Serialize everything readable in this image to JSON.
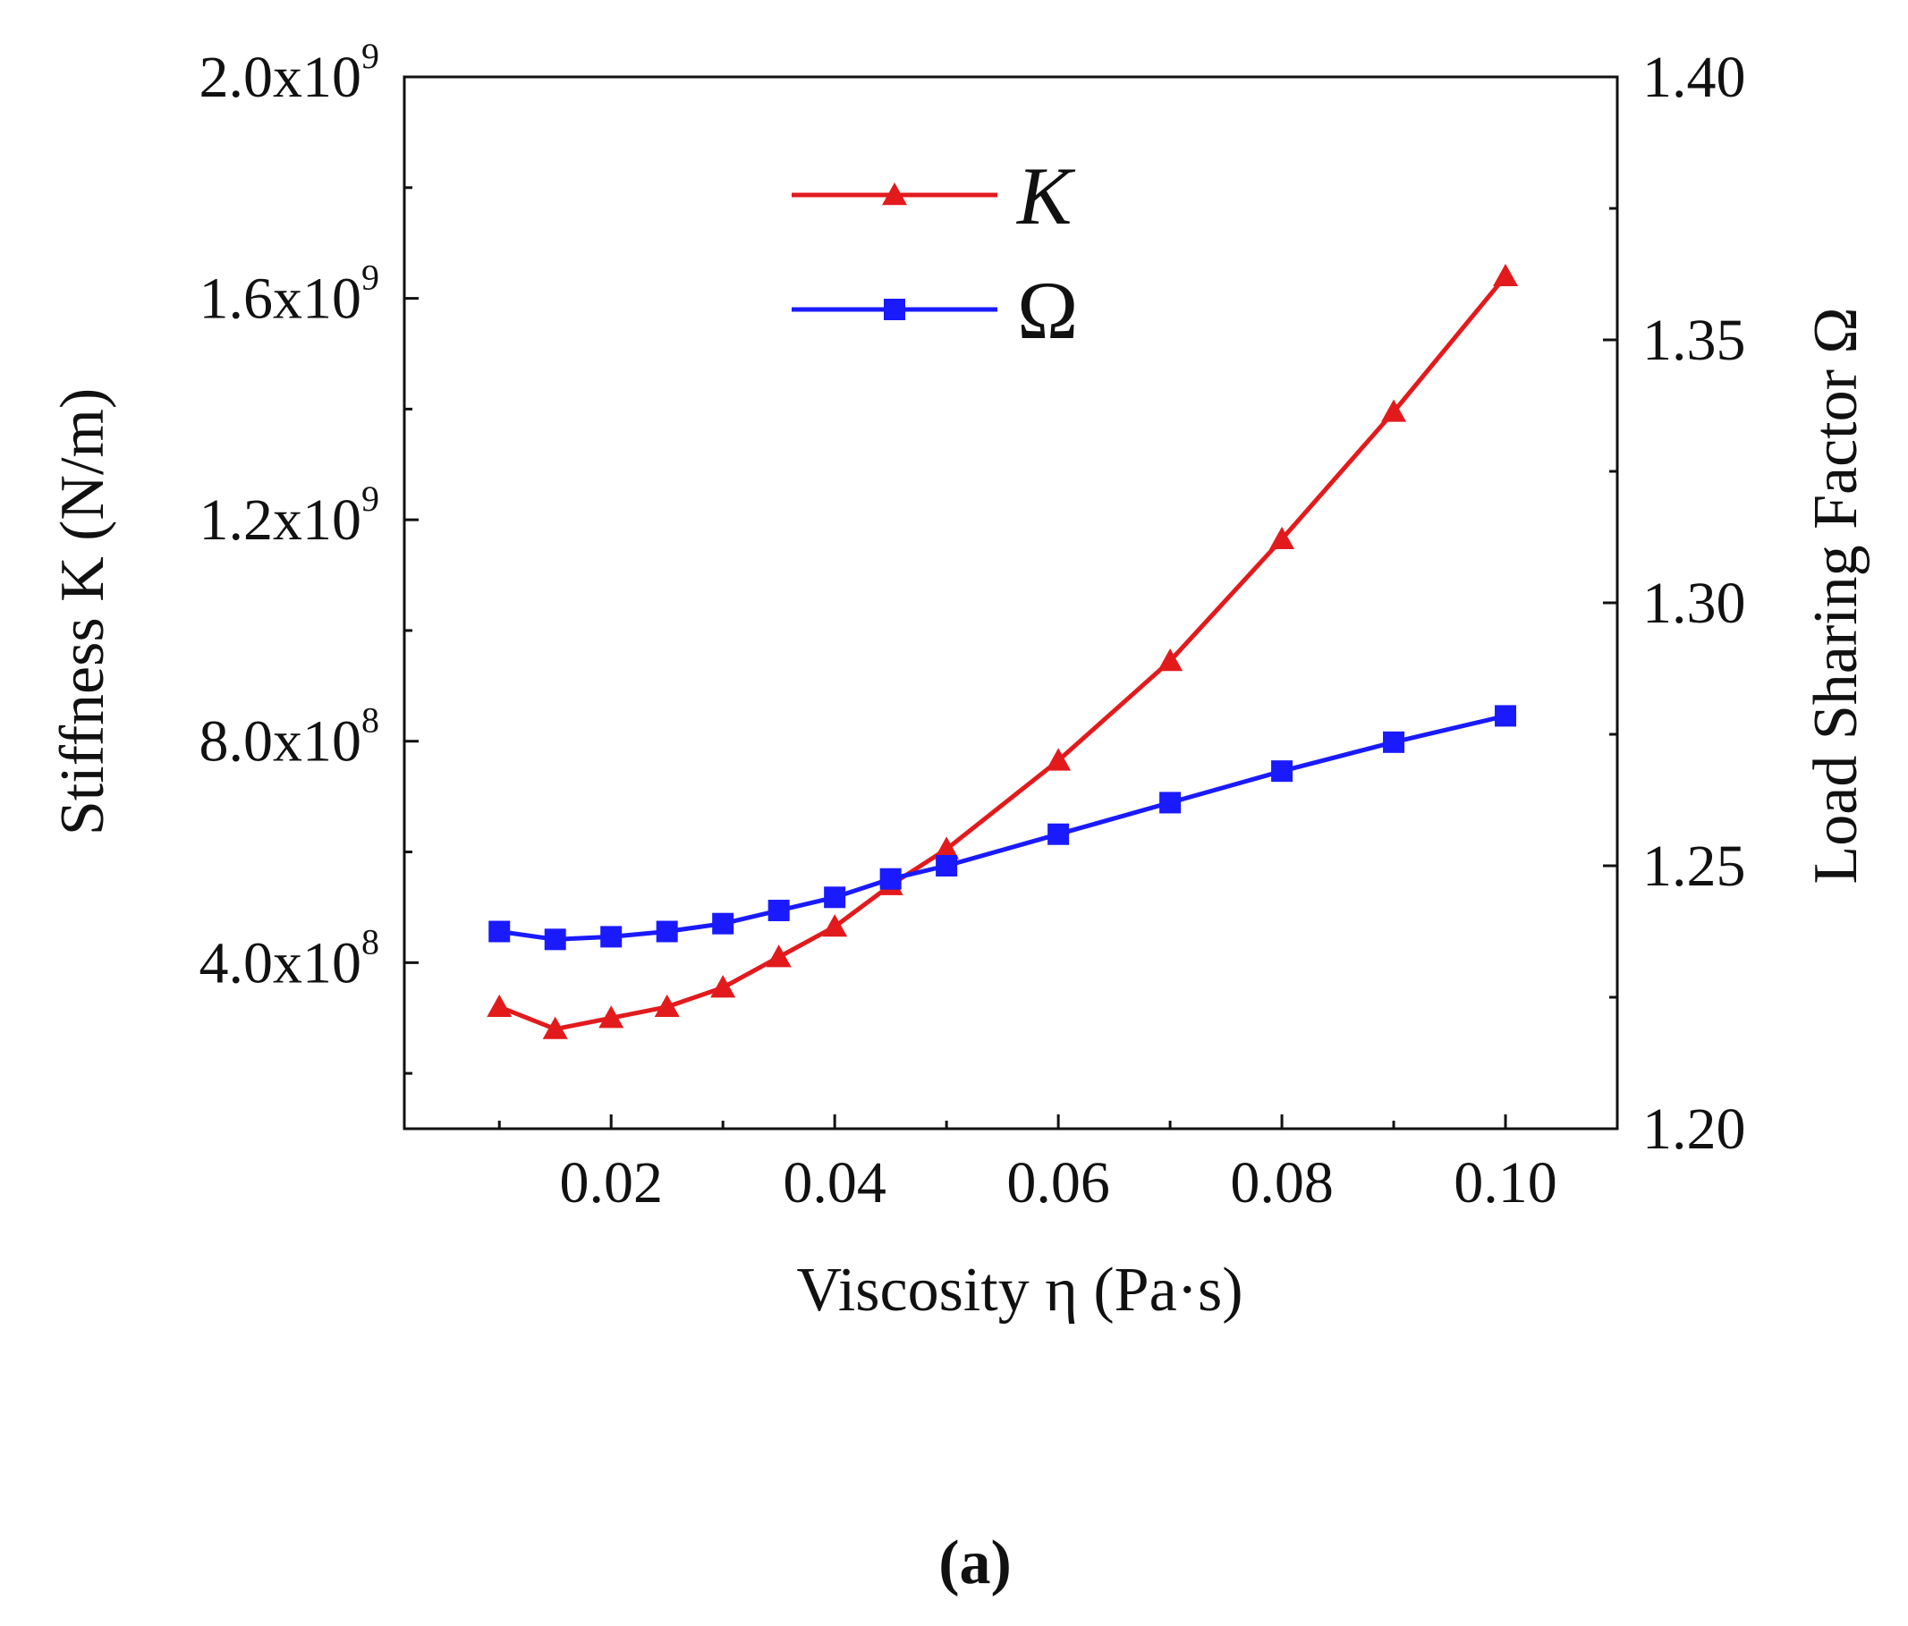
{
  "chart_data": {
    "type": "line",
    "dual_axis": true,
    "x": [
      0.01,
      0.015,
      0.02,
      0.025,
      0.03,
      0.035,
      0.04,
      0.045,
      0.05,
      0.06,
      0.07,
      0.08,
      0.09,
      0.1
    ],
    "xlabel": "Viscosity η (Pa·s)",
    "xlim": [
      0.0015,
      0.11
    ],
    "xticks": [
      {
        "value": 0.02,
        "label": "0.02"
      },
      {
        "value": 0.04,
        "label": "0.04"
      },
      {
        "value": 0.06,
        "label": "0.06"
      },
      {
        "value": 0.08,
        "label": "0.08"
      },
      {
        "value": 0.1,
        "label": "0.10"
      }
    ],
    "y_left": {
      "label": "Stiffness K (N/m)",
      "lim": [
        100000000.0,
        2000000000.0
      ],
      "ticks": [
        {
          "value": 400000000.0,
          "mantissa": "4.0x10",
          "exp": "8"
        },
        {
          "value": 800000000.0,
          "mantissa": "8.0x10",
          "exp": "8"
        },
        {
          "value": 1200000000.0,
          "mantissa": "1.2x10",
          "exp": "9"
        },
        {
          "value": 1600000000.0,
          "mantissa": "1.6x10",
          "exp": "9"
        },
        {
          "value": 2000000000.0,
          "mantissa": "2.0x10",
          "exp": "9"
        }
      ]
    },
    "y_right": {
      "label": "Load Sharing Factor Ω",
      "lim": [
        1.2,
        1.4
      ],
      "ticks": [
        {
          "value": 1.2,
          "label": "1.20"
        },
        {
          "value": 1.25,
          "label": "1.25"
        },
        {
          "value": 1.3,
          "label": "1.30"
        },
        {
          "value": 1.35,
          "label": "1.35"
        },
        {
          "value": 1.4,
          "label": "1.40"
        }
      ]
    },
    "series": [
      {
        "name": "K",
        "axis": "left",
        "color": "#e31a1c",
        "marker": "triangle",
        "values": [
          320000000.0,
          280000000.0,
          300000000.0,
          320000000.0,
          355000000.0,
          410000000.0,
          465000000.0,
          540000000.0,
          605000000.0,
          765000000.0,
          945000000.0,
          1165000000.0,
          1395000000.0,
          1640000000.0
        ]
      },
      {
        "name": "Ω",
        "axis": "right",
        "color": "#1a1aff",
        "marker": "square",
        "values": [
          1.2375,
          1.236,
          1.2365,
          1.2375,
          1.239,
          1.2415,
          1.244,
          1.2475,
          1.25,
          1.256,
          1.262,
          1.268,
          1.2735,
          1.2785
        ]
      }
    ],
    "legend": [
      {
        "label": "K",
        "series": 0
      },
      {
        "label": "Ω",
        "series": 1
      }
    ],
    "legend_position": "top-center",
    "caption": "(a)"
  }
}
